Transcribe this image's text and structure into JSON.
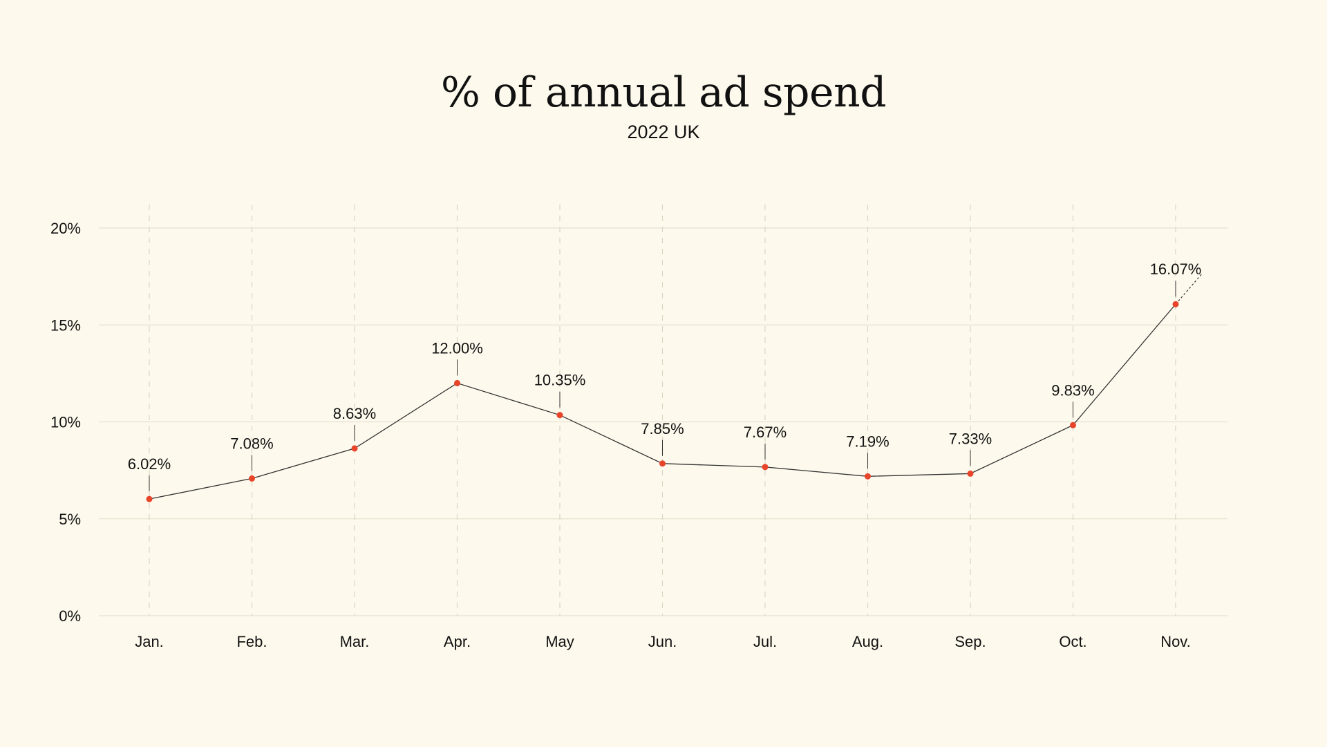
{
  "chart_data": {
    "type": "line",
    "title": "% of annual ad spend",
    "subtitle": "2022 UK",
    "categories": [
      "Jan.",
      "Feb.",
      "Mar.",
      "Apr.",
      "May",
      "Jun.",
      "Jul.",
      "Aug.",
      "Sep.",
      "Oct.",
      "Nov."
    ],
    "values": [
      6.02,
      7.08,
      8.63,
      12.0,
      10.35,
      7.85,
      7.67,
      7.19,
      7.33,
      9.83,
      16.07
    ],
    "data_labels": [
      "6.02%",
      "7.08%",
      "8.63%",
      "12.00%",
      "10.35%",
      "7.85%",
      "7.67%",
      "7.19%",
      "7.33%",
      "9.83%",
      "16.07%"
    ],
    "ylim": [
      0,
      20
    ],
    "yticks": [
      0,
      5,
      10,
      15,
      20
    ],
    "ytick_labels": [
      "0%",
      "5%",
      "10%",
      "15%",
      "20%"
    ],
    "xlabel": "",
    "ylabel": "",
    "grid": true,
    "colors": {
      "background": "#fdf9ec",
      "line": "#333333",
      "marker": "#e8442a",
      "grid": "#e6e3d2",
      "text": "#111111"
    }
  }
}
